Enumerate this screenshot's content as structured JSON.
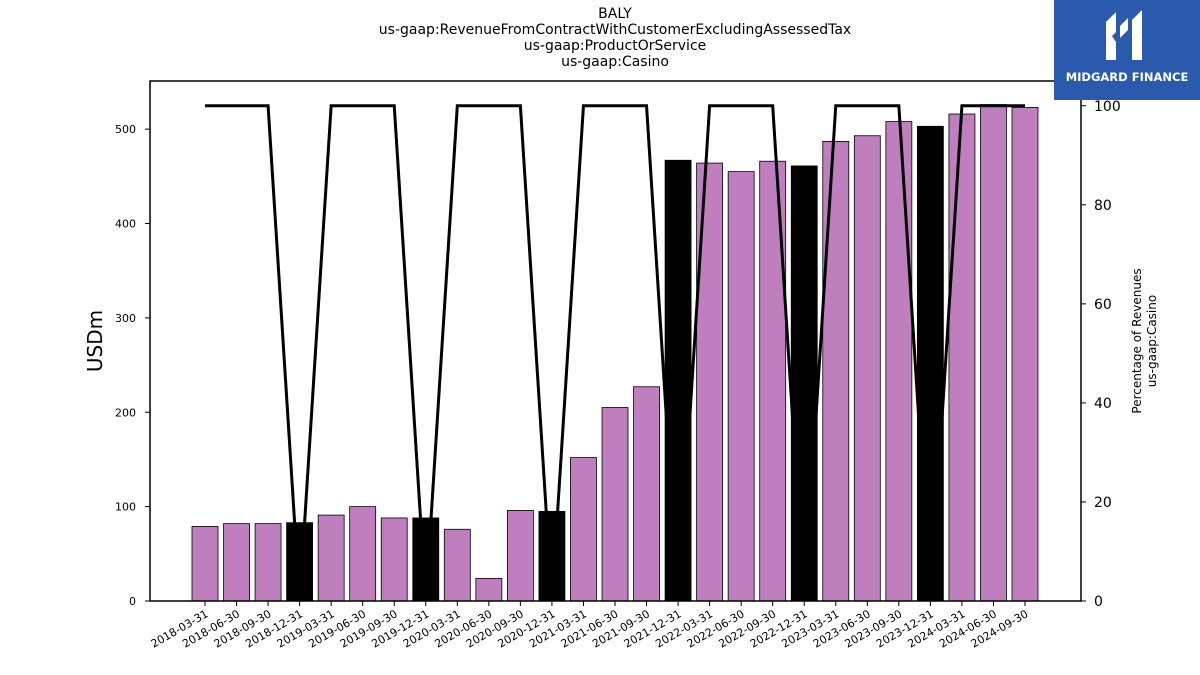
{
  "header": {
    "title_lines": [
      "BALY",
      "us-gaap:RevenueFromContractWithCustomerExcludingAssessedTax",
      "us-gaap:ProductOrService",
      "us-gaap:Casino"
    ]
  },
  "logo": {
    "text": "MIDGARD FINANCE",
    "icon": "midgard-logo-icon",
    "background": "#2b59ad"
  },
  "chart_data": {
    "type": "bar",
    "categories": [
      "2018-03-31",
      "2018-06-30",
      "2018-09-30",
      "2018-12-31",
      "2019-03-31",
      "2019-06-30",
      "2019-09-30",
      "2019-12-31",
      "2020-03-31",
      "2020-06-30",
      "2020-09-30",
      "2020-12-31",
      "2021-03-31",
      "2021-06-30",
      "2021-09-30",
      "2021-12-31",
      "2022-03-31",
      "2022-06-30",
      "2022-09-30",
      "2022-12-31",
      "2023-03-31",
      "2023-06-30",
      "2023-09-30",
      "2023-12-31",
      "2024-03-31",
      "2024-06-30",
      "2024-09-30"
    ],
    "series": [
      {
        "values": [
          79,
          82,
          82,
          83,
          91,
          100,
          88,
          88,
          76,
          24,
          96,
          95,
          152,
          205,
          227,
          467,
          464,
          455,
          466,
          461,
          487,
          493,
          508,
          503,
          516,
          526,
          523
        ],
        "axis": "left"
      },
      {
        "values": [
          100,
          100,
          100,
          0,
          100,
          100,
          100,
          0,
          100,
          100,
          100,
          0,
          100,
          100,
          100,
          0,
          100,
          100,
          100,
          0,
          100,
          100,
          100,
          0,
          100,
          100,
          100
        ],
        "axis": "right",
        "type": "line"
      }
    ],
    "bar_colors": [
      "#bf7fbf",
      "#bf7fbf",
      "#bf7fbf",
      "#000000",
      "#bf7fbf",
      "#bf7fbf",
      "#bf7fbf",
      "#000000",
      "#bf7fbf",
      "#bf7fbf",
      "#bf7fbf",
      "#000000",
      "#bf7fbf",
      "#bf7fbf",
      "#bf7fbf",
      "#000000",
      "#bf7fbf",
      "#bf7fbf",
      "#bf7fbf",
      "#000000",
      "#bf7fbf",
      "#bf7fbf",
      "#bf7fbf",
      "#000000",
      "#bf7fbf",
      "#bf7fbf",
      "#bf7fbf"
    ],
    "ylabel": "USDm",
    "ylabel_right": "Percentage of Revenues\nus-gaap:Casino",
    "ylim": [
      0,
      551
    ],
    "ylim_right": [
      0,
      105
    ],
    "yticks": [
      0,
      100,
      200,
      300,
      400,
      500
    ],
    "yticks_right": [
      0,
      20,
      40,
      60,
      80,
      100
    ],
    "grid": false
  }
}
